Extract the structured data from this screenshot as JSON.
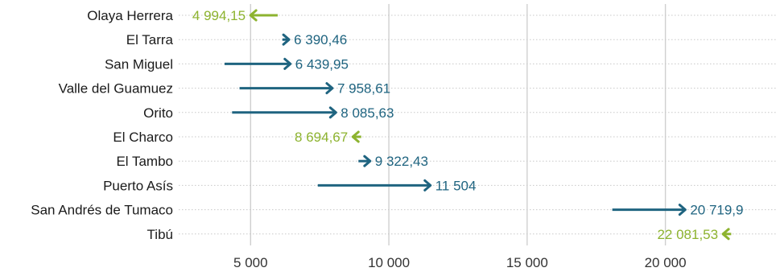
{
  "chart_data": {
    "type": "arrow",
    "colors": {
      "increase": "#1f6480",
      "decrease": "#8db32f"
    },
    "xlim": [
      2400,
      24000
    ],
    "x_ticks": [
      5000,
      10000,
      15000,
      20000
    ],
    "x_tick_labels": [
      "5 000",
      "10 000",
      "15 000",
      "20 000"
    ],
    "grid": true,
    "title": "",
    "xlabel": "",
    "ylabel": "",
    "categories": [
      "Olaya Herrera",
      "El Tarra",
      "San Miguel",
      "Valle del Guamuez",
      "Orito",
      "El Charco",
      "El Tambo",
      "Puerto Asís",
      "San Andrés de Tumaco",
      "Tibú"
    ],
    "start": [
      5980,
      6150,
      4060,
      4600,
      4330,
      9000,
      8900,
      7430,
      18080,
      22380
    ],
    "end": [
      4994.15,
      6390.46,
      6439.95,
      7958.61,
      8085.63,
      8694.67,
      9322.43,
      11504,
      20719.9,
      22081.53
    ],
    "end_labels": [
      "4 994,15",
      "6 390,46",
      "6 439,95",
      "7 958,61",
      "8 085,63",
      "8 694,67",
      "9 322,43",
      "11 504",
      "20 719,9",
      "22 081,53"
    ]
  }
}
